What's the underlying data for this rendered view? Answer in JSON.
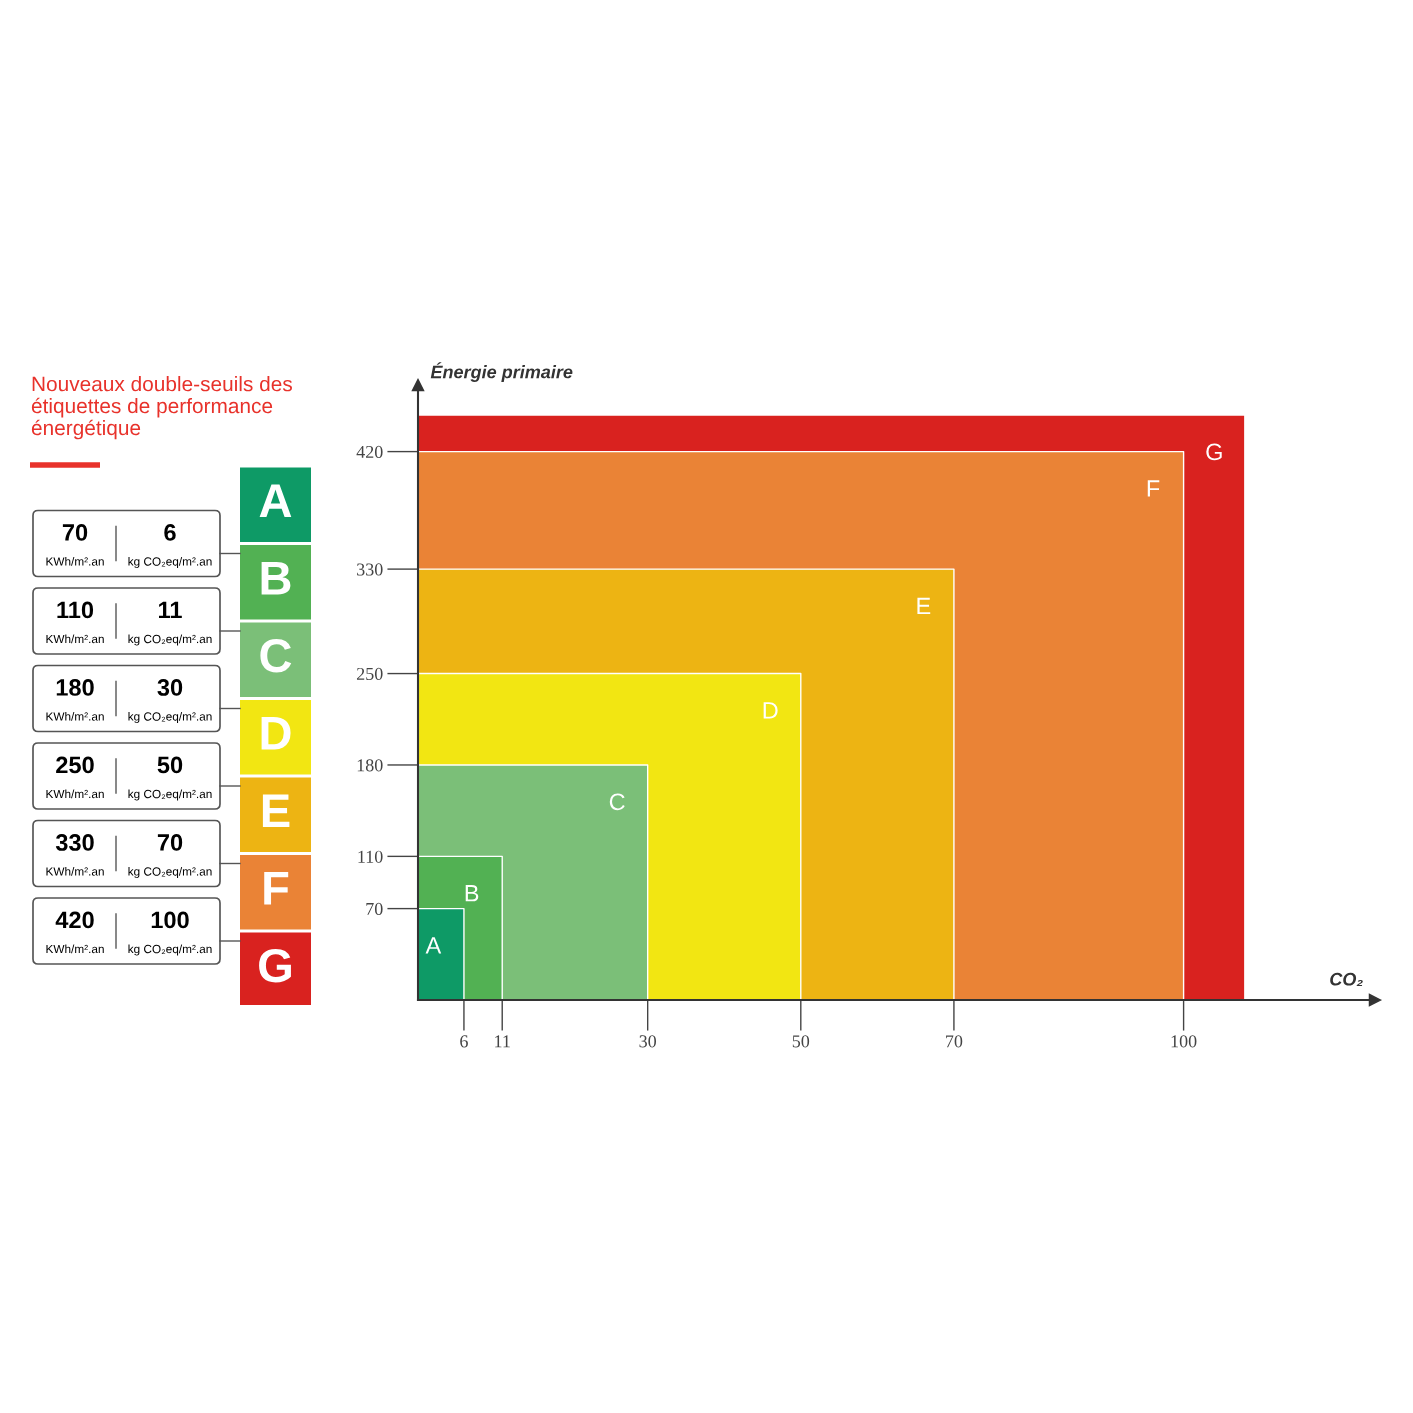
{
  "chart_data": [
    {
      "type": "other",
      "title": "Nouveaux double-seuils des\nétiquettes de performance\nénergétique",
      "colors": [
        "#0e9a66",
        "#52b153",
        "#7bbf78",
        "#f2e612",
        "#edb413",
        "#ea8336",
        "#d9221f"
      ],
      "annotations": [
        "A",
        "B",
        "C",
        "D",
        "E",
        "F",
        "G",
        "70",
        "KWh/m².an",
        "6",
        "kg CO₂eq/m².an",
        "110",
        "KWh/m².an",
        "11",
        "kg CO₂eq/m².an",
        "180",
        "KWh/m².an",
        "30",
        "kg CO₂eq/m².an",
        "250",
        "KWh/m².an",
        "50",
        "kg CO₂eq/m².an",
        "330",
        "KWh/m².an",
        "70",
        "kg CO₂eq/m².an",
        "420",
        "KWh/m².an",
        "100",
        "kg CO₂eq/m².an"
      ]
    },
    {
      "type": "area",
      "xlabel": "CO₂",
      "ylabel": "Énergie primaire",
      "series": [
        {
          "name": "G",
          "color": "#d9221f",
          "x": [
            0,
            108
          ],
          "values": [
            448,
            448
          ]
        },
        {
          "name": "F",
          "color": "#ea8336",
          "x": [
            0,
            100
          ],
          "values": [
            420,
            420
          ]
        },
        {
          "name": "E",
          "color": "#edb413",
          "x": [
            0,
            70
          ],
          "values": [
            330,
            330
          ]
        },
        {
          "name": "D",
          "color": "#f2e612",
          "x": [
            0,
            50
          ],
          "values": [
            250,
            250
          ]
        },
        {
          "name": "C",
          "color": "#7bbf78",
          "x": [
            0,
            30
          ],
          "values": [
            180,
            180
          ]
        },
        {
          "name": "B",
          "color": "#52b153",
          "x": [
            0,
            11
          ],
          "values": [
            110,
            110
          ]
        },
        {
          "name": "A",
          "color": "#0e9a66",
          "x": [
            0,
            6
          ],
          "values": [
            70,
            70
          ]
        }
      ],
      "xlim": [
        0,
        125
      ],
      "ylim": [
        0,
        471
      ],
      "xticks": [
        6,
        11,
        30,
        50,
        70,
        100
      ],
      "yticks": [
        70,
        110,
        180,
        250,
        330,
        420
      ]
    }
  ]
}
